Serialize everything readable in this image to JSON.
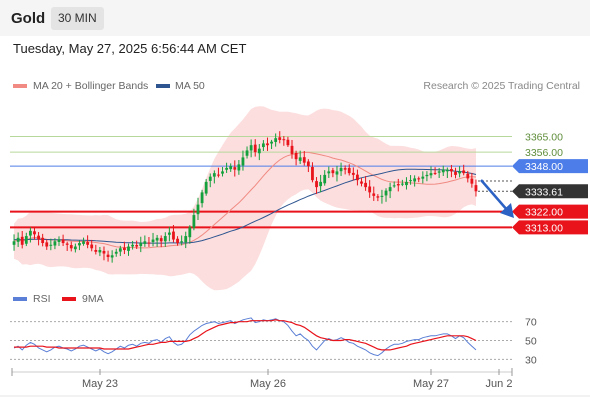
{
  "header": {
    "symbol": "Gold",
    "timeframe": "30 MIN"
  },
  "timestamp": "Tuesday, May 27, 2025 6:56:44 AM CET",
  "legend": {
    "items": [
      {
        "label": "MA 20 + Bollinger Bands",
        "color": "#f08a82"
      },
      {
        "label": "MA 50",
        "color": "#2e5590"
      }
    ],
    "credit": "Research © 2025 Trading Central"
  },
  "rsi_legend": {
    "items": [
      {
        "label": "RSI",
        "color": "#5b7fd6"
      },
      {
        "label": "9MA",
        "color": "#e8131b"
      }
    ]
  },
  "colors": {
    "up": "#14a03c",
    "down": "#e8131b",
    "bands": "#fbd3d3",
    "ma20": "#f08a82",
    "ma50": "#2e5590",
    "support": "#e8131b",
    "pivot": "#4d7de8",
    "resistance": "#b6d89a",
    "last": "#333333"
  },
  "chart_data": [
    {
      "type": "candlestick",
      "title": "Gold 30 MIN",
      "x_ticks": [
        "May 23",
        "May 26",
        "May 27",
        "Jun 2"
      ],
      "ylim": [
        3284,
        3383
      ],
      "levels": [
        {
          "value": 3365.0,
          "label": "3365.00",
          "kind": "resistance"
        },
        {
          "value": 3356.0,
          "label": "3356.00",
          "kind": "resistance"
        },
        {
          "value": 3348.0,
          "label": "3348.00",
          "kind": "pivot"
        },
        {
          "value": 3322.0,
          "label": "3322.00",
          "kind": "support"
        },
        {
          "value": 3313.0,
          "label": "3313.00",
          "kind": "support"
        }
      ],
      "last_price": {
        "value": 3333.61,
        "label": "3333.61"
      },
      "close_series": [
        3305,
        3307,
        3303,
        3308,
        3311,
        3309,
        3306,
        3304,
        3302,
        3303,
        3305,
        3306,
        3304,
        3303,
        3301,
        3302,
        3304,
        3305,
        3303,
        3301,
        3299,
        3300,
        3298,
        3296,
        3297,
        3299,
        3301,
        3300,
        3302,
        3303,
        3302,
        3304,
        3305,
        3304,
        3306,
        3307,
        3305,
        3308,
        3310,
        3306,
        3304,
        3305,
        3308,
        3313,
        3320,
        3326,
        3333,
        3339,
        3342,
        3344,
        3343,
        3345,
        3347,
        3348,
        3346,
        3349,
        3353,
        3357,
        3360,
        3356,
        3358,
        3361,
        3360,
        3362,
        3364,
        3363,
        3363,
        3360,
        3355,
        3352,
        3353,
        3350,
        3348,
        3340,
        3336,
        3339,
        3343,
        3345,
        3344,
        3345,
        3347,
        3346,
        3344,
        3343,
        3340,
        3338,
        3336,
        3333,
        3331,
        3330,
        3331,
        3334,
        3336,
        3337,
        3337,
        3338,
        3339,
        3340,
        3341,
        3341,
        3342,
        3343,
        3344,
        3344,
        3345,
        3346,
        3346,
        3345,
        3343,
        3345,
        3344,
        3341,
        3338,
        3333.61
      ]
    },
    {
      "type": "line",
      "title": "RSI",
      "series": [
        {
          "name": "RSI"
        },
        {
          "name": "9MA"
        }
      ],
      "yticks": [
        70,
        50,
        30
      ],
      "ylim": [
        24,
        76
      ],
      "rsi": [
        42,
        44,
        40,
        45,
        48,
        46,
        42,
        40,
        38,
        40,
        43,
        44,
        42,
        41,
        39,
        41,
        44,
        45,
        43,
        41,
        39,
        41,
        38,
        36,
        38,
        41,
        44,
        42,
        45,
        46,
        44,
        47,
        48,
        47,
        50,
        51,
        48,
        52,
        54,
        48,
        45,
        46,
        50,
        56,
        60,
        63,
        66,
        68,
        69,
        70,
        68,
        69,
        70,
        71,
        68,
        70,
        72,
        73,
        74,
        69,
        70,
        72,
        71,
        72,
        73,
        71,
        70,
        66,
        60,
        55,
        57,
        53,
        50,
        44,
        40,
        45,
        50,
        52,
        50,
        51,
        53,
        51,
        48,
        47,
        44,
        42,
        40,
        37,
        35,
        34,
        37,
        41,
        44,
        46,
        46,
        47,
        49,
        50,
        51,
        51,
        53,
        54,
        55,
        55,
        56,
        57,
        57,
        55,
        52,
        55,
        53,
        48,
        44,
        40
      ],
      "ma9": [
        43,
        43,
        43,
        43,
        44,
        44,
        44,
        44,
        43,
        43,
        43,
        42,
        42,
        42,
        42,
        42,
        42,
        42,
        42,
        42,
        42,
        42,
        41,
        41,
        41,
        41,
        41,
        41,
        41,
        42,
        43,
        44,
        45,
        46,
        46,
        47,
        48,
        48,
        49,
        49,
        49,
        49,
        49,
        50,
        52,
        54,
        57,
        60,
        62,
        64,
        66,
        67,
        68,
        69,
        69,
        70,
        70,
        70,
        71,
        71,
        71,
        71,
        71,
        71,
        72,
        71,
        71,
        70,
        69,
        67,
        66,
        64,
        61,
        58,
        55,
        53,
        52,
        51,
        50,
        50,
        50,
        51,
        51,
        50,
        49,
        48,
        47,
        45,
        43,
        41,
        40,
        40,
        40,
        41,
        42,
        43,
        44,
        46,
        47,
        48,
        49,
        50,
        51,
        52,
        53,
        54,
        55,
        55,
        55,
        55,
        55,
        54,
        52,
        50
      ]
    }
  ]
}
